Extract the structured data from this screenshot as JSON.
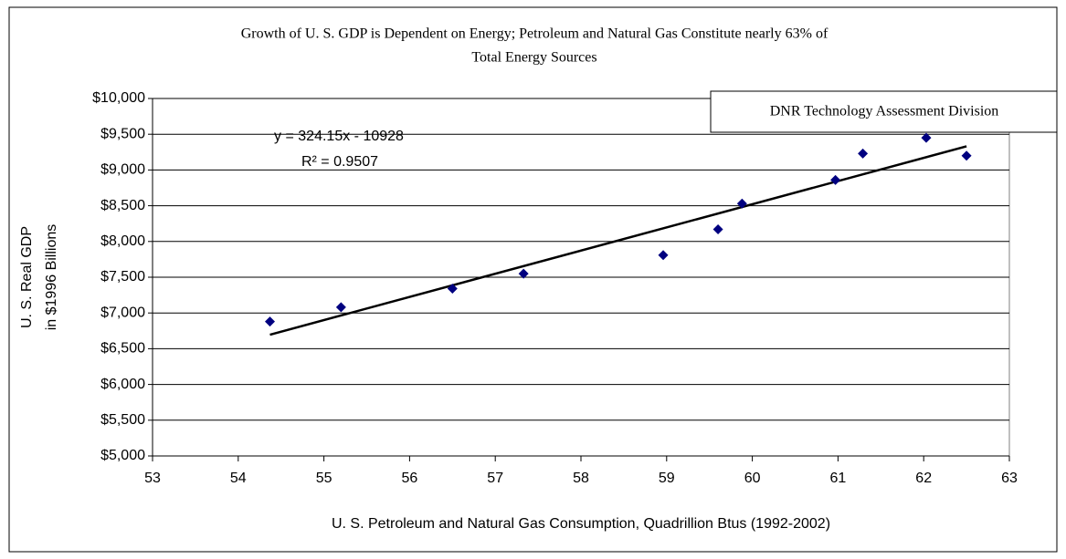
{
  "chart_data": {
    "type": "scatter",
    "title": [
      "Growth of U. S. GDP is Dependent on Energy;  Petroleum and Natural Gas Constitute nearly 63% of",
      "Total Energy Sources"
    ],
    "xlabel": "U. S. Petroleum and Natural Gas Consumption, Quadrillion Btus (1992-2002)",
    "ylabel": [
      "U. S. Real GDP",
      "in $1996 Billions"
    ],
    "annotation": "DNR Technology Assessment Division",
    "trendline": {
      "slope": 324.15,
      "intercept": -10928,
      "label": "y = 324.15x - 10928",
      "r2_label": "R² = 0.9507",
      "color": "#000000"
    },
    "x": [
      54.37,
      55.2,
      56.5,
      57.33,
      58.96,
      59.6,
      59.88,
      60.97,
      61.29,
      62.03,
      62.5
    ],
    "values": [
      6880,
      7080,
      7340,
      7550,
      7810,
      8170,
      8530,
      8860,
      9230,
      9450,
      9200
    ],
    "color": "#000080",
    "xlim": [
      53,
      63
    ],
    "xticks": [
      53,
      54,
      55,
      56,
      57,
      58,
      59,
      60,
      61,
      62,
      63
    ],
    "ylim": [
      5000,
      10000
    ],
    "yticks": [
      {
        "value": 5000,
        "label": "$5,000"
      },
      {
        "value": 5500,
        "label": "$5,500"
      },
      {
        "value": 6000,
        "label": "$6,000"
      },
      {
        "value": 6500,
        "label": "$6,500"
      },
      {
        "value": 7000,
        "label": "$7,000"
      },
      {
        "value": 7500,
        "label": "$7,500"
      },
      {
        "value": 8000,
        "label": "$8,000"
      },
      {
        "value": 8500,
        "label": "$8,500"
      },
      {
        "value": 9000,
        "label": "$9,000"
      },
      {
        "value": 9500,
        "label": "$9,500"
      },
      {
        "value": 10000,
        "label": "$10,000"
      }
    ],
    "grid": true
  }
}
